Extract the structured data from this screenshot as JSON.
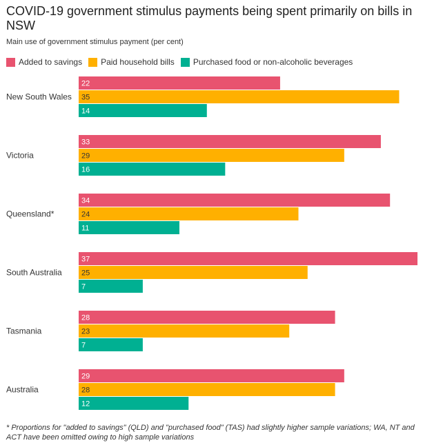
{
  "title": "COVID-19 government stimulus payments being spent primarily on bills in NSW",
  "subtitle": "Main use of government stimulus payment (per cent)",
  "footnote": "* Proportions for \"added to savings\" (QLD) and \"purchased food\" (TAS) had slightly higher sample variations; WA, NT and ACT have been omitted owing to high sample variations",
  "chart_data": {
    "type": "bar",
    "orientation": "horizontal",
    "categories": [
      "New South Wales",
      "Victoria",
      "Queensland*",
      "South Australia",
      "Tasmania",
      "Australia"
    ],
    "series": [
      {
        "name": "Added to savings",
        "color": "#e8536f",
        "values": [
          22,
          33,
          34,
          37,
          28,
          29
        ]
      },
      {
        "name": "Paid household bills",
        "color": "#ffb000",
        "values": [
          35,
          29,
          24,
          25,
          23,
          28
        ]
      },
      {
        "name": "Purchased food or non-alcoholic beverages",
        "color": "#00b092",
        "values": [
          14,
          16,
          11,
          7,
          7,
          12
        ]
      }
    ],
    "xlim": [
      0,
      37
    ],
    "legend_position": "top-left",
    "grid": false,
    "data_labels": true
  }
}
